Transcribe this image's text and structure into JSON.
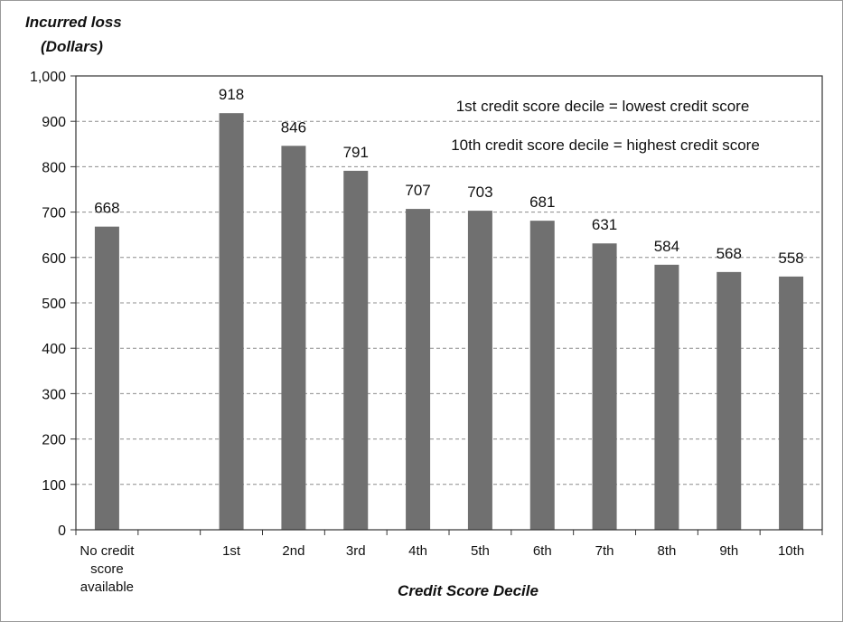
{
  "chart_data": {
    "type": "bar",
    "ylabel_line1": "Incurred loss",
    "ylabel_line2": "(Dollars)",
    "xlabel": "Credit Score Decile",
    "ylim": [
      0,
      1000
    ],
    "yticks": [
      "0",
      "100",
      "200",
      "300",
      "400",
      "500",
      "600",
      "700",
      "800",
      "900",
      "1,000"
    ],
    "grid": true,
    "categories": [
      [
        "No credit",
        "score",
        "available"
      ],
      [
        ""
      ],
      [
        "1st"
      ],
      [
        "2nd"
      ],
      [
        "3rd"
      ],
      [
        "4th"
      ],
      [
        "5th"
      ],
      [
        "6th"
      ],
      [
        "7th"
      ],
      [
        "8th"
      ],
      [
        "9th"
      ],
      [
        "10th"
      ]
    ],
    "values": [
      668,
      null,
      918,
      846,
      791,
      707,
      703,
      681,
      631,
      584,
      568,
      558
    ],
    "data_labels": [
      "668",
      "",
      "918",
      "846",
      "791",
      "707",
      "703",
      "681",
      "631",
      "584",
      "568",
      "558"
    ],
    "annotations": [
      "1st credit score decile = lowest credit score",
      "10th credit score decile = highest credit score"
    ],
    "bar_color": "#707070",
    "grid_color": "#8c8c8c"
  }
}
